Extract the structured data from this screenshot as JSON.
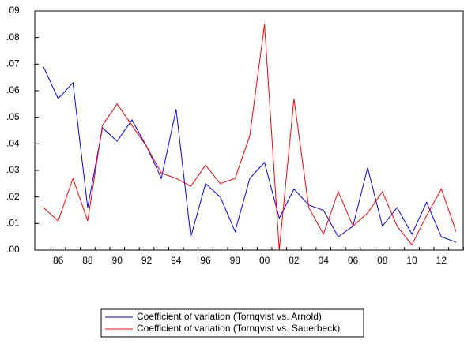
{
  "chart_data": {
    "type": "line",
    "categories": [
      null,
      "86",
      null,
      "88",
      null,
      "90",
      null,
      "92",
      null,
      "94",
      null,
      "96",
      null,
      "98",
      null,
      "00",
      null,
      "02",
      null,
      "04",
      null,
      "06",
      null,
      "08",
      null,
      "10",
      null,
      "12",
      null
    ],
    "series": [
      {
        "name": "Coefficient of variation (Tornqvist vs. Arnold)",
        "color": "#0000ff",
        "values": [
          0.069,
          0.057,
          0.063,
          0.016,
          0.046,
          0.041,
          0.049,
          0.039,
          0.027,
          0.053,
          0.005,
          0.025,
          0.02,
          0.007,
          0.027,
          0.033,
          0.012,
          0.023,
          0.017,
          0.015,
          0.005,
          0.009,
          0.031,
          0.009,
          0.016,
          0.006,
          0.018,
          0.005,
          0.003
        ]
      },
      {
        "name": "Coefficient of variation (Tornqvist vs. Sauerbeck)",
        "color": "#ff0000",
        "values": [
          0.016,
          0.011,
          0.027,
          0.011,
          0.047,
          0.055,
          0.047,
          0.039,
          0.029,
          0.027,
          0.024,
          0.032,
          0.025,
          0.027,
          0.043,
          0.085,
          0.0,
          0.057,
          0.016,
          0.006,
          0.022,
          0.009,
          0.014,
          0.022,
          0.009,
          0.002,
          0.013,
          0.023,
          0.007
        ]
      }
    ],
    "ylim": [
      0,
      0.09
    ],
    "yticks": [
      {
        "value": 0,
        "label": ".00"
      },
      {
        "value": 0.01,
        "label": ".01"
      },
      {
        "value": 0.02,
        "label": ".02"
      },
      {
        "value": 0.03,
        "label": ".03"
      },
      {
        "value": 0.04,
        "label": ".04"
      },
      {
        "value": 0.05,
        "label": ".05"
      },
      {
        "value": 0.06,
        "label": ".06"
      },
      {
        "value": 0.07,
        "label": ".07"
      },
      {
        "value": 0.08,
        "label": ".08"
      },
      {
        "value": 0.09,
        "label": ".09"
      }
    ],
    "grid": false
  }
}
